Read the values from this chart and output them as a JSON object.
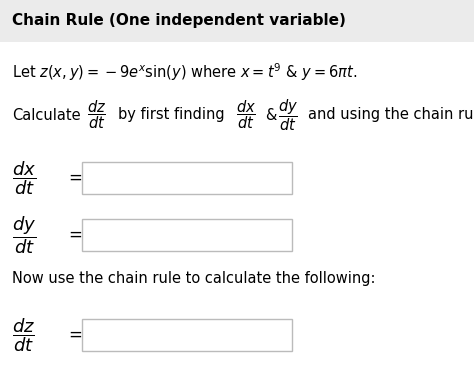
{
  "title": "Chain Rule (One independent variable)",
  "title_bg": "#ebebeb",
  "bg_color": "#ffffff",
  "text_color": "#000000",
  "box_color": "#ffffff",
  "box_edge_color": "#bbbbbb",
  "now_use": "Now use the chain rule to calculate the following:"
}
